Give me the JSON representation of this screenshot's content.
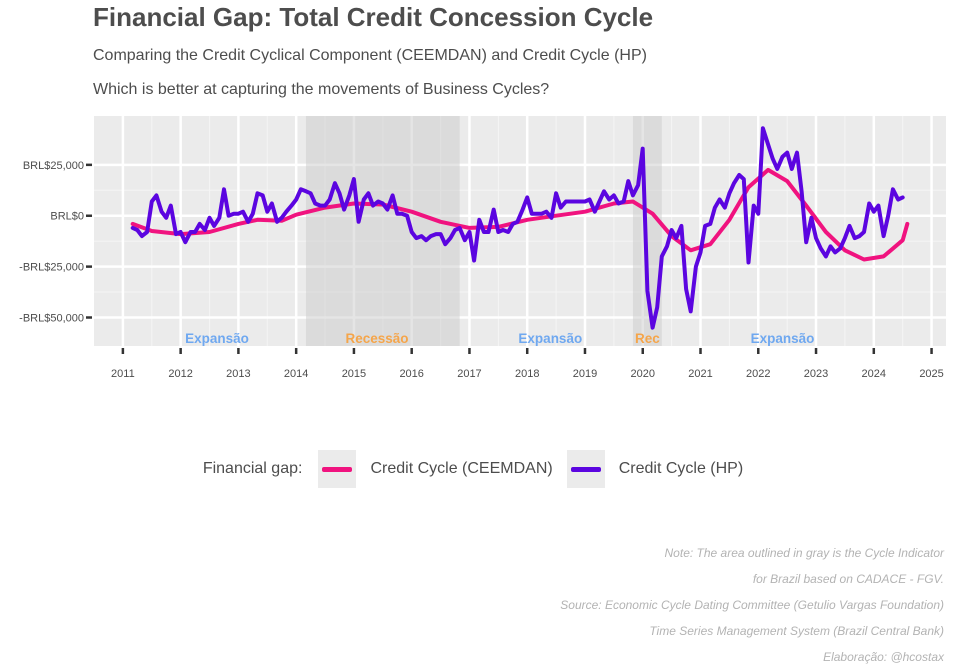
{
  "header": {
    "title": "Financial Gap: Total Credit Concession Cycle",
    "subtitle": "Comparing the Credit Cyclical Component (CEEMDAN) and Credit Cycle (HP)",
    "subtitle2": "Which is better at capturing the movements of Business Cycles?"
  },
  "legend": {
    "title": "Financial gap:",
    "items": [
      {
        "label": "Credit Cycle (CEEMDAN)",
        "color": "#f0137f"
      },
      {
        "label": "Credit Cycle (HP)",
        "color": "#5b05e0"
      }
    ]
  },
  "caption": {
    "lines": [
      "Note: The area outlined in gray is the Cycle Indicator",
      "for Brazil based on CADACE - FGV.",
      "Source: Economic Cycle Dating Committee (Getulio Vargas Foundation)",
      "Time Series Management System (Brazil Central Bank)",
      "Elaboração: @hcostax"
    ]
  },
  "chart_data": {
    "type": "line",
    "xlim": [
      2010.5,
      2025.25
    ],
    "ylim": [
      -64000,
      49000
    ],
    "x_ticks": [
      2011,
      2012,
      2013,
      2014,
      2015,
      2016,
      2017,
      2018,
      2019,
      2020,
      2021,
      2022,
      2023,
      2024,
      2025
    ],
    "y_ticks": [
      {
        "value": 25000,
        "label": "BRL$25,000"
      },
      {
        "value": 0,
        "label": "BRL$0"
      },
      {
        "value": -25000,
        "label": "-BRL$25,000"
      },
      {
        "value": -50000,
        "label": "-BRL$50,000"
      }
    ],
    "grid": true,
    "legend_position": "bottom",
    "recessions": [
      {
        "start": 2014.17,
        "end": 2016.83
      },
      {
        "start": 2019.83,
        "end": 2020.33
      }
    ],
    "phase_labels": [
      {
        "text": "Expansão",
        "x": 2012.63,
        "color": "#6fa8f0"
      },
      {
        "text": "Recessão",
        "x": 2015.4,
        "color": "#f5a54a"
      },
      {
        "text": "Expansão",
        "x": 2018.4,
        "color": "#6fa8f0"
      },
      {
        "text": "Rec",
        "x": 2020.08,
        "color": "#f5a54a"
      },
      {
        "text": "Expansão",
        "x": 2022.42,
        "color": "#6fa8f0"
      }
    ],
    "series": [
      {
        "name": "Credit Cycle (CEEMDAN)",
        "color": "#f0137f",
        "points": [
          [
            2011.17,
            -4000
          ],
          [
            2011.5,
            -7500
          ],
          [
            2012.0,
            -9000
          ],
          [
            2012.5,
            -8000
          ],
          [
            2013.0,
            -4000
          ],
          [
            2013.33,
            -2000
          ],
          [
            2013.75,
            -2500
          ],
          [
            2014.0,
            500
          ],
          [
            2014.5,
            4000
          ],
          [
            2015.0,
            6000
          ],
          [
            2015.5,
            5500
          ],
          [
            2016.0,
            2000
          ],
          [
            2016.5,
            -3000
          ],
          [
            2017.0,
            -6000
          ],
          [
            2017.5,
            -5500
          ],
          [
            2018.0,
            -2000
          ],
          [
            2018.5,
            0
          ],
          [
            2019.0,
            2000
          ],
          [
            2019.5,
            6000
          ],
          [
            2019.83,
            7000
          ],
          [
            2020.17,
            1000
          ],
          [
            2020.5,
            -10000
          ],
          [
            2020.83,
            -17000
          ],
          [
            2021.17,
            -14000
          ],
          [
            2021.5,
            -2000
          ],
          [
            2021.83,
            14000
          ],
          [
            2022.17,
            22500
          ],
          [
            2022.5,
            17000
          ],
          [
            2022.83,
            5000
          ],
          [
            2023.17,
            -8000
          ],
          [
            2023.5,
            -17000
          ],
          [
            2023.83,
            -21500
          ],
          [
            2024.17,
            -20000
          ],
          [
            2024.5,
            -12000
          ],
          [
            2024.58,
            -4000
          ]
        ]
      },
      {
        "name": "Credit Cycle (HP)",
        "color": "#5b05e0",
        "points": [
          [
            2011.17,
            -6000
          ],
          [
            2011.25,
            -7000
          ],
          [
            2011.33,
            -10000
          ],
          [
            2011.42,
            -8000
          ],
          [
            2011.5,
            7000
          ],
          [
            2011.58,
            10000
          ],
          [
            2011.67,
            2000
          ],
          [
            2011.75,
            -1000
          ],
          [
            2011.83,
            5000
          ],
          [
            2011.92,
            -9000
          ],
          [
            2012.0,
            -8000
          ],
          [
            2012.08,
            -13000
          ],
          [
            2012.17,
            -8000
          ],
          [
            2012.25,
            -8000
          ],
          [
            2012.33,
            -4000
          ],
          [
            2012.42,
            -7000
          ],
          [
            2012.5,
            -1000
          ],
          [
            2012.58,
            -5000
          ],
          [
            2012.67,
            -1000
          ],
          [
            2012.75,
            13000
          ],
          [
            2012.83,
            0
          ],
          [
            2012.92,
            1000
          ],
          [
            2013.0,
            1000
          ],
          [
            2013.08,
            2000
          ],
          [
            2013.17,
            -3000
          ],
          [
            2013.25,
            1000
          ],
          [
            2013.33,
            11000
          ],
          [
            2013.42,
            10000
          ],
          [
            2013.5,
            2000
          ],
          [
            2013.58,
            6000
          ],
          [
            2013.67,
            -3000
          ],
          [
            2013.75,
            -1000
          ],
          [
            2013.83,
            2000
          ],
          [
            2013.92,
            5000
          ],
          [
            2014.0,
            8000
          ],
          [
            2014.08,
            13000
          ],
          [
            2014.17,
            12000
          ],
          [
            2014.25,
            11000
          ],
          [
            2014.33,
            6000
          ],
          [
            2014.42,
            5000
          ],
          [
            2014.5,
            5000
          ],
          [
            2014.58,
            8000
          ],
          [
            2014.67,
            16000
          ],
          [
            2014.75,
            11000
          ],
          [
            2014.83,
            3000
          ],
          [
            2014.92,
            10000
          ],
          [
            2015.0,
            18000
          ],
          [
            2015.08,
            -3000
          ],
          [
            2015.17,
            8000
          ],
          [
            2015.25,
            11000
          ],
          [
            2015.33,
            5000
          ],
          [
            2015.42,
            7000
          ],
          [
            2015.5,
            6000
          ],
          [
            2015.58,
            3000
          ],
          [
            2015.67,
            10000
          ],
          [
            2015.75,
            1000
          ],
          [
            2015.83,
            1000
          ],
          [
            2015.92,
            0
          ],
          [
            2016.0,
            -8000
          ],
          [
            2016.08,
            -11000
          ],
          [
            2016.17,
            -10000
          ],
          [
            2016.25,
            -12000
          ],
          [
            2016.33,
            -10000
          ],
          [
            2016.42,
            -9000
          ],
          [
            2016.5,
            -9000
          ],
          [
            2016.58,
            -14000
          ],
          [
            2016.67,
            -11000
          ],
          [
            2016.75,
            -7000
          ],
          [
            2016.83,
            -6000
          ],
          [
            2016.92,
            -12000
          ],
          [
            2017.0,
            -8000
          ],
          [
            2017.08,
            -22000
          ],
          [
            2017.17,
            -2000
          ],
          [
            2017.25,
            -8000
          ],
          [
            2017.33,
            -8000
          ],
          [
            2017.42,
            3000
          ],
          [
            2017.5,
            -8000
          ],
          [
            2017.58,
            -7000
          ],
          [
            2017.67,
            -8000
          ],
          [
            2017.75,
            -4000
          ],
          [
            2017.83,
            -3000
          ],
          [
            2017.92,
            3000
          ],
          [
            2018.0,
            9000
          ],
          [
            2018.08,
            1000
          ],
          [
            2018.17,
            1000
          ],
          [
            2018.25,
            1000
          ],
          [
            2018.33,
            2000
          ],
          [
            2018.42,
            -1000
          ],
          [
            2018.5,
            11000
          ],
          [
            2018.58,
            4000
          ],
          [
            2018.67,
            7000
          ],
          [
            2018.75,
            7000
          ],
          [
            2018.83,
            7000
          ],
          [
            2018.92,
            7000
          ],
          [
            2019.0,
            7000
          ],
          [
            2019.08,
            8000
          ],
          [
            2019.17,
            2000
          ],
          [
            2019.25,
            7000
          ],
          [
            2019.33,
            12000
          ],
          [
            2019.42,
            8000
          ],
          [
            2019.5,
            10000
          ],
          [
            2019.58,
            6000
          ],
          [
            2019.67,
            7000
          ],
          [
            2019.75,
            17000
          ],
          [
            2019.83,
            10000
          ],
          [
            2019.92,
            15000
          ],
          [
            2020.0,
            33000
          ],
          [
            2020.08,
            -37000
          ],
          [
            2020.17,
            -55000
          ],
          [
            2020.25,
            -45000
          ],
          [
            2020.33,
            -20000
          ],
          [
            2020.42,
            -15000
          ],
          [
            2020.5,
            -7000
          ],
          [
            2020.58,
            -11000
          ],
          [
            2020.67,
            -5000
          ],
          [
            2020.75,
            -36000
          ],
          [
            2020.83,
            -47000
          ],
          [
            2020.92,
            -25000
          ],
          [
            2021.0,
            -18000
          ],
          [
            2021.08,
            -5000
          ],
          [
            2021.17,
            -4000
          ],
          [
            2021.25,
            4000
          ],
          [
            2021.33,
            8000
          ],
          [
            2021.42,
            4000
          ],
          [
            2021.5,
            11000
          ],
          [
            2021.58,
            16000
          ],
          [
            2021.67,
            20000
          ],
          [
            2021.75,
            18000
          ],
          [
            2021.83,
            -23000
          ],
          [
            2021.92,
            5000
          ],
          [
            2022.0,
            1000
          ],
          [
            2022.08,
            43000
          ],
          [
            2022.17,
            35000
          ],
          [
            2022.25,
            28000
          ],
          [
            2022.33,
            23000
          ],
          [
            2022.42,
            29000
          ],
          [
            2022.5,
            31000
          ],
          [
            2022.58,
            23000
          ],
          [
            2022.67,
            31000
          ],
          [
            2022.75,
            12000
          ],
          [
            2022.83,
            -13000
          ],
          [
            2022.92,
            -1000
          ],
          [
            2023.0,
            -11000
          ],
          [
            2023.08,
            -16000
          ],
          [
            2023.17,
            -20000
          ],
          [
            2023.25,
            -15000
          ],
          [
            2023.33,
            -18000
          ],
          [
            2023.42,
            -16000
          ],
          [
            2023.5,
            -11000
          ],
          [
            2023.58,
            -5000
          ],
          [
            2023.67,
            -11000
          ],
          [
            2023.75,
            -10000
          ],
          [
            2023.83,
            -8000
          ],
          [
            2023.92,
            6000
          ],
          [
            2024.0,
            2000
          ],
          [
            2024.08,
            5000
          ],
          [
            2024.17,
            -10000
          ],
          [
            2024.25,
            0
          ],
          [
            2024.33,
            13000
          ],
          [
            2024.42,
            8000
          ],
          [
            2024.5,
            9000
          ]
        ]
      }
    ]
  }
}
